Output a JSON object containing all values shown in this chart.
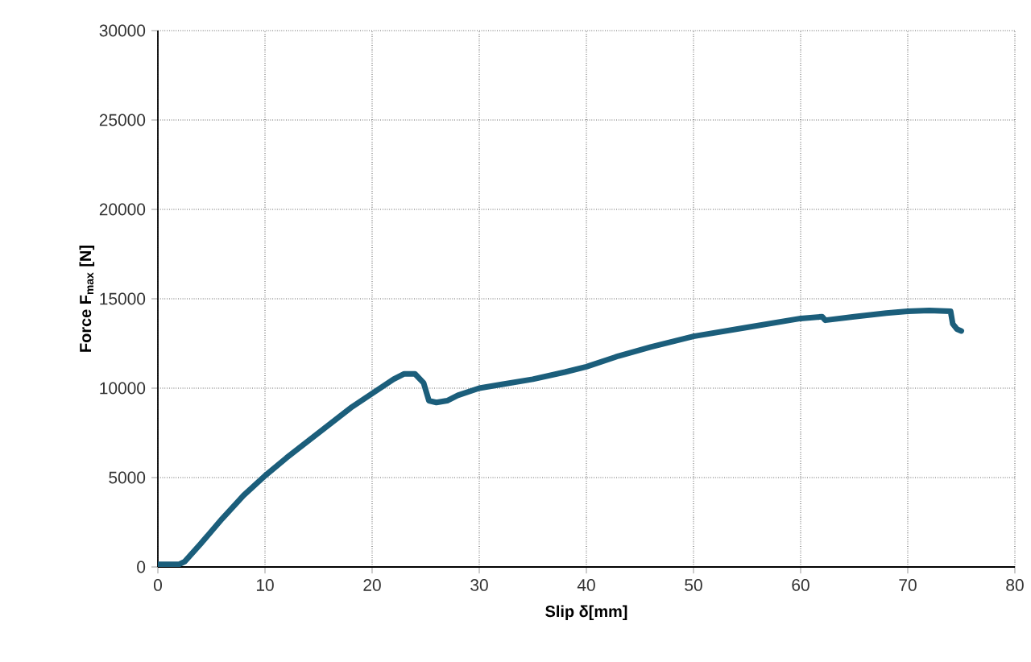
{
  "chart_data": {
    "type": "line",
    "xlabel": "**Slip δ[mm]**",
    "ylabel": "**Force F$_{max}$ [N]**",
    "xlim": [
      0,
      80
    ],
    "ylim": [
      0,
      30000
    ],
    "xticks": [
      0,
      10,
      20,
      30,
      40,
      50,
      60,
      70,
      80
    ],
    "yticks": [
      0,
      5000,
      10000,
      15000,
      20000,
      25000,
      30000
    ],
    "grid": true,
    "marker": "none",
    "line_style": "solid",
    "series": [
      {
        "color": "#1b5e7b",
        "x": [
          0,
          2,
          2.5,
          4,
          6,
          8,
          10,
          12,
          15,
          18,
          20,
          22,
          23,
          24,
          24.8,
          25.3,
          26,
          27,
          28,
          30,
          32,
          35,
          38,
          40,
          43,
          46,
          50,
          55,
          60,
          62,
          62.3,
          65,
          68,
          70,
          72,
          74,
          74.2,
          74.6,
          75
        ],
        "values": [
          150,
          150,
          300,
          1300,
          2700,
          4000,
          5100,
          6100,
          7500,
          8900,
          9700,
          10500,
          10800,
          10800,
          10300,
          9300,
          9200,
          9300,
          9600,
          10000,
          10200,
          10500,
          10900,
          11200,
          11800,
          12300,
          12900,
          13400,
          13900,
          14000,
          13800,
          14000,
          14200,
          14300,
          14350,
          14300,
          13600,
          13300,
          13200
        ]
      }
    ]
  }
}
